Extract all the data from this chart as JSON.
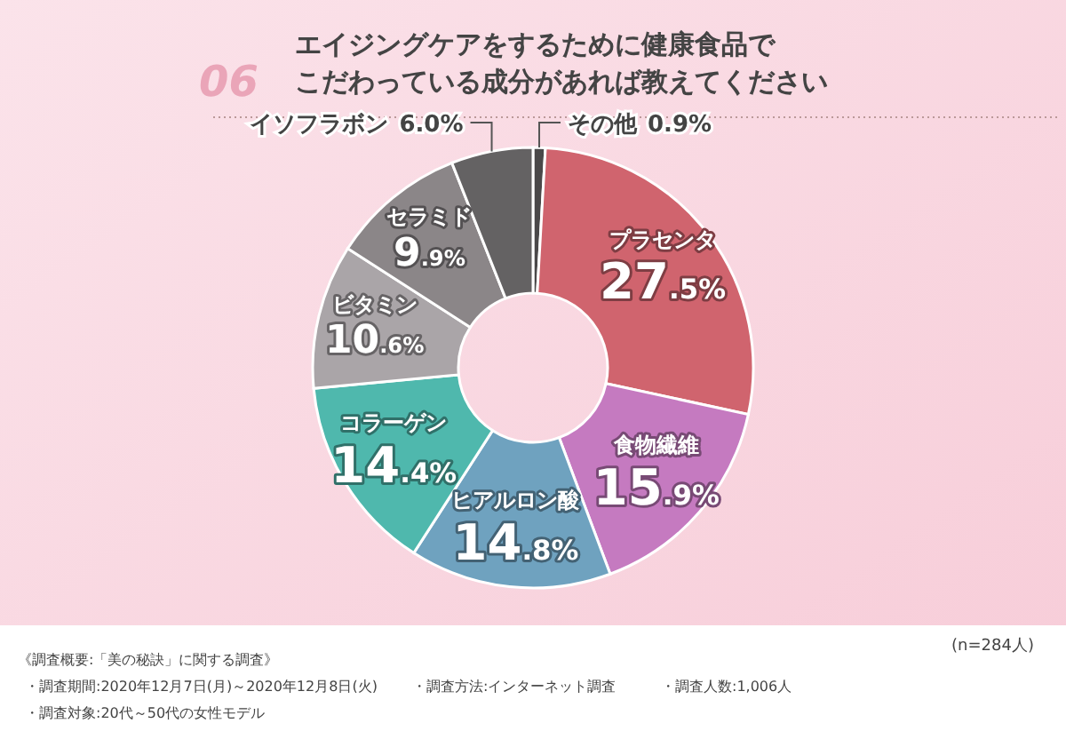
{
  "chart_data": {
    "type": "donut",
    "title": "エイジングケアをするために健康食品でこだわっている成分があれば教えてください",
    "categories": [
      "その他",
      "プラセンタ",
      "食物繊維",
      "ヒアルロン酸",
      "コラーゲン",
      "ビタミン",
      "セラミド",
      "イソフラボン"
    ],
    "values": [
      0.9,
      27.5,
      15.9,
      14.8,
      14.4,
      10.6,
      9.9,
      6.0
    ],
    "value_labels": [
      "0.9%",
      "27.5%",
      "15.9%",
      "14.8%",
      "14.4%",
      "10.6%",
      "9.9%",
      "6.0%"
    ],
    "colors": [
      "#4a4849",
      "#d0646e",
      "#c57ac0",
      "#6fa2bf",
      "#4fb8ad",
      "#aaa5a8",
      "#8b8688",
      "#646263"
    ],
    "annotations": [
      "06",
      "(n=284人)",
      "《調査概要:「美の秘訣」に関する調査》",
      "・調査期間:2020年12月7日(月)～2020年12月8日(火)",
      "・調査対象:20代～50代の女性モデル",
      "・調査方法:インターネット調査",
      "・調査人数:1,006人"
    ]
  }
}
